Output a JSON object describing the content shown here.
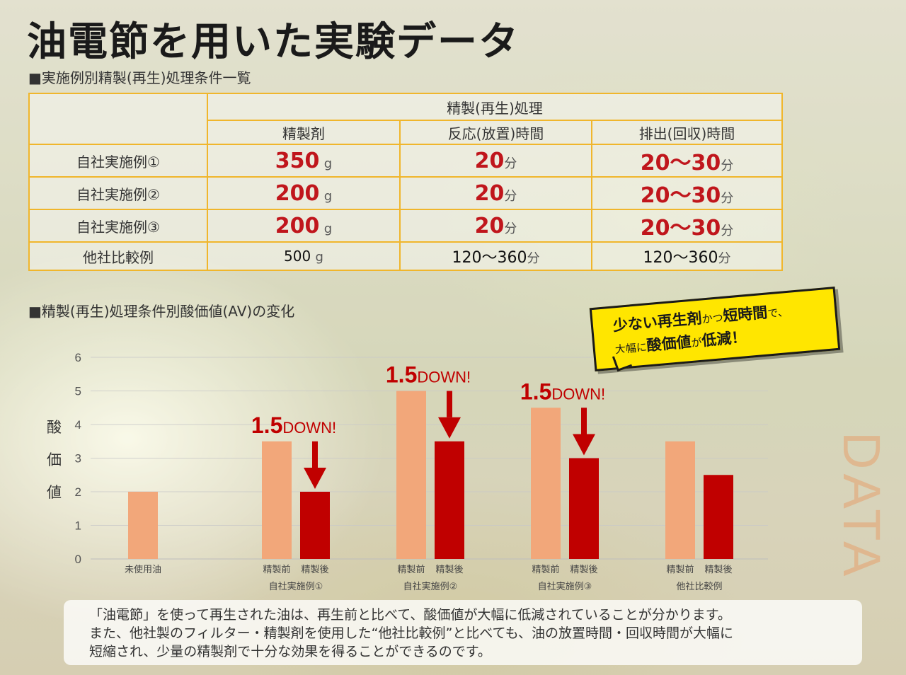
{
  "title": "油電節を用いた実験データ",
  "section_table": "■実施例別精製(再生)処理条件一覧",
  "section_chart": "■精製(再生)処理条件別酸価値(AV)の変化",
  "side_text": "DATA",
  "table": {
    "group_header": "精製(再生)処理",
    "columns": [
      "精製剤",
      "反応(放置)時間",
      "排出(回収)時間"
    ],
    "rows": [
      {
        "label": "自社実施例①",
        "agent": "350",
        "agent_unit": "g",
        "reaction": "20",
        "reaction_unit": "分",
        "discharge": "20〜30",
        "discharge_unit": "分"
      },
      {
        "label": "自社実施例②",
        "agent": "200",
        "agent_unit": "g",
        "reaction": "20",
        "reaction_unit": "分",
        "discharge": "20〜30",
        "discharge_unit": "分"
      },
      {
        "label": "自社実施例③",
        "agent": "200",
        "agent_unit": "g",
        "reaction": "20",
        "reaction_unit": "分",
        "discharge": "20〜30",
        "discharge_unit": "分"
      },
      {
        "label": "他社比較例",
        "agent": "500",
        "agent_unit": "g",
        "reaction": "120〜360",
        "reaction_unit": "分",
        "discharge": "120〜360",
        "discharge_unit": "分"
      }
    ]
  },
  "callout": {
    "line1_a": "少ない再生剤",
    "line1_b": "かつ",
    "line1_c": "短時間",
    "line1_d": "で、",
    "line2_a": "大幅に",
    "line2_b": "酸価値",
    "line2_c": "が",
    "line2_d": "低減！"
  },
  "note": [
    "「油電節」を使って再生された油は、再生前と比べて、酸価値が大幅に低減されていることが分かります。",
    "また、他社製のフィルター・精製剤を使用した“他社比較例”と比べても、油の放置時間・回収時間が大幅に",
    "短縮され、少量の精製剤で十分な効果を得ることができるのです。"
  ],
  "colors": {
    "before": "#f2a77a",
    "after": "#c00000",
    "arrow": "#c00000",
    "table_border": "#f0b62c",
    "callout": "#ffe600"
  },
  "chart_data": {
    "type": "bar",
    "ylabel": "酸価値",
    "ylim": [
      0,
      6
    ],
    "yticks": [
      0,
      1,
      2,
      3,
      4,
      5,
      6
    ],
    "grid": true,
    "groups": [
      {
        "name": "",
        "bars": [
          {
            "label": "未使用油",
            "value": 2,
            "kind": "before"
          }
        ]
      },
      {
        "name": "自社実施例①",
        "bars": [
          {
            "label": "精製前",
            "value": 3.5,
            "kind": "before"
          },
          {
            "label": "精製後",
            "value": 2,
            "kind": "after"
          }
        ],
        "annotation": {
          "num": "1.5",
          "text": "DOWN!"
        }
      },
      {
        "name": "自社実施例②",
        "bars": [
          {
            "label": "精製前",
            "value": 5,
            "kind": "before"
          },
          {
            "label": "精製後",
            "value": 3.5,
            "kind": "after"
          }
        ],
        "annotation": {
          "num": "1.5",
          "text": "DOWN!"
        }
      },
      {
        "name": "自社実施例③",
        "bars": [
          {
            "label": "精製前",
            "value": 4.5,
            "kind": "before"
          },
          {
            "label": "精製後",
            "value": 3,
            "kind": "after"
          }
        ],
        "annotation": {
          "num": "1.5",
          "text": "DOWN!"
        }
      },
      {
        "name": "他社比較例",
        "bars": [
          {
            "label": "精製前",
            "value": 3.5,
            "kind": "before"
          },
          {
            "label": "精製後",
            "value": 2.5,
            "kind": "after"
          }
        ]
      }
    ]
  }
}
